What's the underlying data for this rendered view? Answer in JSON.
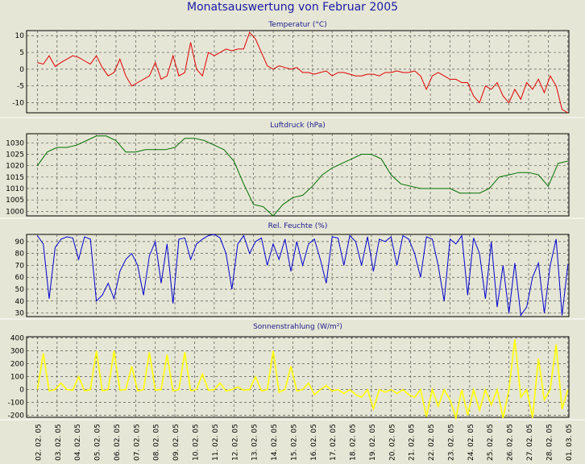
{
  "title": "Monatsauswertung von Februar 2005",
  "x_labels": [
    "02. 02. 05",
    "03. 02. 05",
    "04. 02. 05",
    "05. 02. 05",
    "06. 02. 05",
    "07. 02. 05",
    "08. 02. 05",
    "09. 02. 05",
    "10. 02. 05",
    "11. 02. 05",
    "12. 02. 05",
    "13. 02. 05",
    "14. 02. 05",
    "15. 02. 05",
    "16. 02. 05",
    "17. 02. 05",
    "18. 02. 05",
    "19. 02. 05",
    "20. 02. 05",
    "21. 02. 05",
    "22. 02. 05",
    "23. 02. 05",
    "24. 02. 05",
    "25. 02. 05",
    "26. 02. 05",
    "27. 02. 05",
    "28. 02. 05",
    "01. 03. 05"
  ],
  "chart_data": [
    {
      "type": "line",
      "title": "Temperatur (°C)",
      "color": "#e00000",
      "ylim": [
        -13,
        11.5
      ],
      "yticks": [
        10,
        5,
        0,
        -5,
        -10
      ],
      "x": [
        0,
        0.3,
        0.6,
        0.9,
        1.2,
        1.5,
        1.8,
        2.1,
        2.4,
        2.7,
        3.0,
        3.3,
        3.6,
        3.9,
        4.2,
        4.5,
        4.8,
        5.1,
        5.4,
        5.7,
        6.0,
        6.3,
        6.6,
        6.9,
        7.2,
        7.5,
        7.8,
        8.1,
        8.4,
        8.7,
        9.0,
        9.3,
        9.6,
        9.9,
        10.2,
        10.5,
        10.8,
        11.1,
        11.4,
        11.7,
        12.0,
        12.3,
        12.6,
        12.9,
        13.2,
        13.5,
        13.8,
        14.1,
        14.4,
        14.7,
        15.0,
        15.3,
        15.6,
        15.9,
        16.2,
        16.5,
        16.8,
        17.1,
        17.4,
        17.7,
        18.0,
        18.3,
        18.6,
        18.9,
        19.2,
        19.5,
        19.8,
        20.1,
        20.4,
        20.7,
        21.0,
        21.3,
        21.6,
        21.9,
        22.2,
        22.5,
        22.8,
        23.1,
        23.4,
        23.7,
        24.0,
        24.3,
        24.6,
        24.9,
        25.2,
        25.5,
        25.8,
        26.1,
        26.4,
        26.7,
        27.0
      ],
      "y": [
        2,
        1.5,
        4,
        0.8,
        2,
        3,
        4,
        3.5,
        2.5,
        1.5,
        4,
        0.5,
        -2,
        -1,
        3,
        -2,
        -5,
        -4,
        -3,
        -2,
        2,
        -3,
        -2,
        4,
        -2,
        -1,
        8,
        0,
        -2,
        5,
        4,
        5,
        6,
        5.5,
        6,
        6,
        11,
        9,
        5,
        1,
        0,
        1,
        0.5,
        0,
        0.5,
        -1,
        -1,
        -1.5,
        -1,
        -0.5,
        -2,
        -1,
        -1,
        -1.5,
        -2,
        -2,
        -1.5,
        -1.5,
        -2,
        -1,
        -1,
        -0.5,
        -1,
        -1,
        -0.5,
        -2,
        -6,
        -2,
        -1,
        -2,
        -3,
        -3,
        -4,
        -4,
        -8,
        -10,
        -5,
        -6,
        -4,
        -8,
        -10,
        -6,
        -9,
        -4,
        -6,
        -3,
        -7,
        -2,
        -5,
        -12,
        -13
      ]
    },
    {
      "type": "line",
      "title": "Luftdruck (hPa)",
      "color": "#007000",
      "ylim": [
        998,
        1034
      ],
      "yticks": [
        1030,
        1025,
        1020,
        1015,
        1010,
        1005,
        1000
      ],
      "x": [
        0,
        0.5,
        1.0,
        1.5,
        2.0,
        2.5,
        3.0,
        3.5,
        4.0,
        4.5,
        5.0,
        5.5,
        6.0,
        6.5,
        7.0,
        7.5,
        8.0,
        8.5,
        9.0,
        9.5,
        10.0,
        10.5,
        11.0,
        11.5,
        12.0,
        12.5,
        13.0,
        13.5,
        14.0,
        14.5,
        15.0,
        15.5,
        16.0,
        16.5,
        17.0,
        17.5,
        18.0,
        18.5,
        19.0,
        19.5,
        20.0,
        20.5,
        21.0,
        21.5,
        22.0,
        22.5,
        23.0,
        23.5,
        24.0,
        24.5,
        25.0,
        25.5,
        26.0,
        26.5,
        27.0
      ],
      "y": [
        1020,
        1026,
        1028,
        1028,
        1029,
        1031,
        1033,
        1033,
        1031,
        1026,
        1026,
        1027,
        1027,
        1027,
        1028,
        1032,
        1032,
        1031,
        1029,
        1027,
        1022,
        1012,
        1003,
        1002,
        998,
        1003,
        1006,
        1007,
        1011,
        1016,
        1019,
        1021,
        1023,
        1025,
        1025,
        1023,
        1016,
        1012,
        1011,
        1010,
        1010,
        1010,
        1010,
        1008,
        1008,
        1008,
        1010,
        1015,
        1016,
        1017,
        1017,
        1016,
        1011,
        1021,
        1022
      ]
    },
    {
      "type": "line",
      "title": "Rel. Feuchte (%)",
      "color": "#0000d0",
      "ylim": [
        27,
        96
      ],
      "yticks": [
        90,
        80,
        70,
        60,
        50,
        40,
        30
      ],
      "x": [
        0,
        0.3,
        0.6,
        0.9,
        1.2,
        1.5,
        1.8,
        2.1,
        2.4,
        2.7,
        3.0,
        3.3,
        3.6,
        3.9,
        4.2,
        4.5,
        4.8,
        5.1,
        5.4,
        5.7,
        6.0,
        6.3,
        6.6,
        6.9,
        7.2,
        7.5,
        7.8,
        8.1,
        8.4,
        8.7,
        9.0,
        9.3,
        9.6,
        9.9,
        10.2,
        10.5,
        10.8,
        11.1,
        11.4,
        11.7,
        12.0,
        12.3,
        12.6,
        12.9,
        13.2,
        13.5,
        13.8,
        14.1,
        14.4,
        14.7,
        15.0,
        15.3,
        15.6,
        15.9,
        16.2,
        16.5,
        16.8,
        17.1,
        17.4,
        17.7,
        18.0,
        18.3,
        18.6,
        18.9,
        19.2,
        19.5,
        19.8,
        20.1,
        20.4,
        20.7,
        21.0,
        21.3,
        21.6,
        21.9,
        22.2,
        22.5,
        22.8,
        23.1,
        23.4,
        23.7,
        24.0,
        24.3,
        24.6,
        24.9,
        25.2,
        25.5,
        25.8,
        26.1,
        26.4,
        26.7,
        27.0
      ],
      "y": [
        95,
        88,
        42,
        85,
        92,
        94,
        93,
        75,
        94,
        92,
        40,
        45,
        55,
        42,
        65,
        75,
        80,
        70,
        45,
        78,
        90,
        55,
        88,
        38,
        92,
        93,
        75,
        88,
        92,
        95,
        96,
        93,
        80,
        50,
        88,
        95,
        80,
        90,
        93,
        70,
        88,
        75,
        92,
        65,
        90,
        70,
        88,
        92,
        75,
        55,
        94,
        93,
        70,
        95,
        90,
        70,
        94,
        65,
        92,
        90,
        94,
        70,
        95,
        92,
        80,
        60,
        94,
        92,
        70,
        40,
        92,
        88,
        95,
        45,
        93,
        80,
        42,
        90,
        35,
        70,
        30,
        72,
        28,
        35,
        60,
        72,
        30,
        70,
        92,
        28,
        71
      ]
    },
    {
      "type": "line",
      "title": "Sonnenstrahlung (W/m²)",
      "color": "#ffff00",
      "ylim": [
        -215,
        410
      ],
      "yticks": [
        400,
        300,
        200,
        100,
        0,
        -100,
        -200
      ],
      "x": [
        0,
        0.3,
        0.6,
        0.9,
        1.2,
        1.5,
        1.8,
        2.1,
        2.4,
        2.7,
        3.0,
        3.3,
        3.6,
        3.9,
        4.2,
        4.5,
        4.8,
        5.1,
        5.4,
        5.7,
        6.0,
        6.3,
        6.6,
        6.9,
        7.2,
        7.5,
        7.8,
        8.1,
        8.4,
        8.7,
        9.0,
        9.3,
        9.6,
        9.9,
        10.2,
        10.5,
        10.8,
        11.1,
        11.4,
        11.7,
        12.0,
        12.3,
        12.6,
        12.9,
        13.2,
        13.5,
        13.8,
        14.1,
        14.4,
        14.7,
        15.0,
        15.3,
        15.6,
        15.9,
        16.2,
        16.5,
        16.8,
        17.1,
        17.4,
        17.7,
        18.0,
        18.3,
        18.6,
        18.9,
        19.2,
        19.5,
        19.8,
        20.1,
        20.4,
        20.7,
        21.0,
        21.3,
        21.6,
        21.9,
        22.2,
        22.5,
        22.8,
        23.1,
        23.4,
        23.7,
        24.0,
        24.3,
        24.6,
        24.9,
        25.2,
        25.5,
        25.8,
        26.1,
        26.4,
        26.7,
        27.0
      ],
      "y": [
        0,
        280,
        -10,
        0,
        50,
        0,
        -5,
        100,
        -10,
        0,
        300,
        -10,
        0,
        300,
        -5,
        0,
        180,
        -10,
        0,
        290,
        -5,
        0,
        270,
        -10,
        0,
        290,
        -10,
        0,
        120,
        -5,
        0,
        50,
        -10,
        0,
        20,
        -5,
        0,
        100,
        -10,
        0,
        300,
        -20,
        0,
        180,
        -10,
        0,
        50,
        -40,
        0,
        30,
        -10,
        0,
        -30,
        0,
        -40,
        -60,
        0,
        -150,
        0,
        -20,
        0,
        -30,
        0,
        -40,
        -60,
        0,
        -210,
        0,
        -130,
        0,
        -80,
        -220,
        0,
        -200,
        0,
        -160,
        0,
        -120,
        0,
        -220,
        0,
        390,
        -60,
        0,
        -220,
        240,
        -80,
        0,
        350,
        -150,
        0
      ]
    }
  ]
}
